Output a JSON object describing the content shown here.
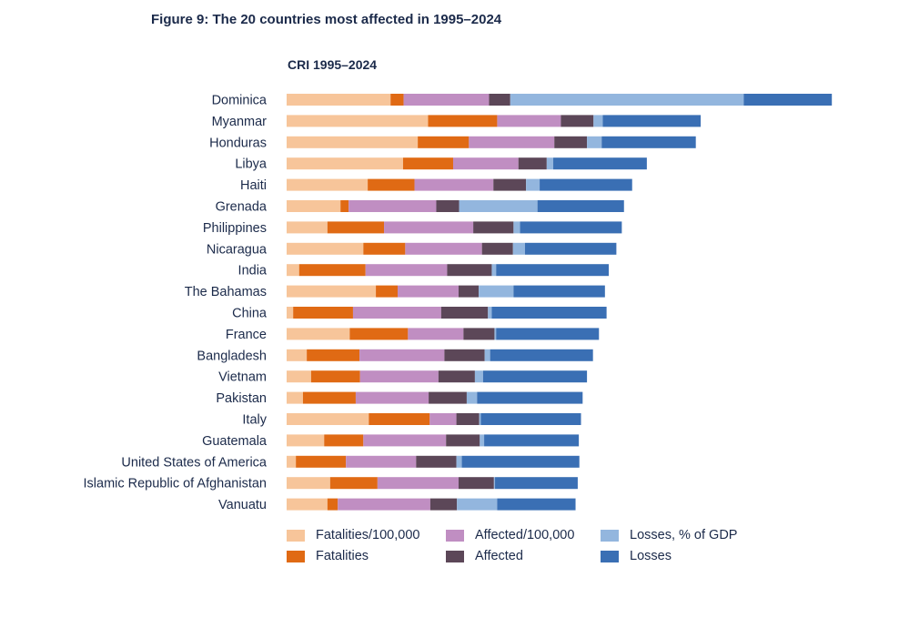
{
  "figure_title": "Figure 9: The 20 countries most affected in 1995–2024",
  "chart_data": {
    "type": "bar",
    "orientation": "horizontal",
    "stacked": true,
    "title": "CRI 1995–2024",
    "xlabel": "",
    "ylabel": "",
    "xlim": [
      0,
      100
    ],
    "grid": false,
    "legend_position": "bottom",
    "categories": [
      "Dominica",
      "Myanmar",
      "Honduras",
      "Libya",
      "Haiti",
      "Grenada",
      "Philippines",
      "Nicaragua",
      "India",
      "The Bahamas",
      "China",
      "France",
      "Bangladesh",
      "Vietnam",
      "Pakistan",
      "Italy",
      "Guatemala",
      "United States of America",
      "Islamic Republic of Afghanistan",
      "Vanuatu"
    ],
    "series": [
      {
        "name": "Fatalities/100,000",
        "color": "#f7c59a",
        "values": [
          19.1,
          26.0,
          24.1,
          21.4,
          14.9,
          9.9,
          7.5,
          14.1,
          2.3,
          16.4,
          1.2,
          11.6,
          3.7,
          4.5,
          3.0,
          15.1,
          6.9,
          1.7,
          8.0,
          7.5
        ]
      },
      {
        "name": "Fatalities",
        "color": "#e06a14",
        "values": [
          2.4,
          12.7,
          9.4,
          9.2,
          8.6,
          1.5,
          10.4,
          7.7,
          12.2,
          4.0,
          11.0,
          10.7,
          9.7,
          9.0,
          9.7,
          11.2,
          7.2,
          9.2,
          8.7,
          1.9
        ]
      },
      {
        "name": "Affected/100,000",
        "color": "#c08ec2",
        "values": [
          15.7,
          11.7,
          15.7,
          12.0,
          14.5,
          16.1,
          16.4,
          14.1,
          15.0,
          11.2,
          16.2,
          10.2,
          15.6,
          14.4,
          13.4,
          4.9,
          15.2,
          12.9,
          14.9,
          17.0
        ]
      },
      {
        "name": "Affected",
        "color": "#5c4758",
        "values": [
          3.9,
          6.0,
          6.0,
          5.2,
          6.0,
          4.2,
          7.4,
          5.7,
          8.2,
          3.7,
          8.6,
          5.7,
          7.4,
          6.7,
          7.0,
          4.2,
          6.2,
          7.4,
          6.5,
          4.9
        ]
      },
      {
        "name": "Losses, % of GDP",
        "color": "#93b6de",
        "values": [
          42.9,
          1.7,
          2.7,
          1.2,
          2.5,
          14.4,
          1.2,
          2.2,
          0.8,
          6.4,
          0.7,
          0.3,
          1.0,
          1.5,
          1.9,
          0.3,
          0.8,
          1.0,
          0.2,
          7.4
        ]
      },
      {
        "name": "Losses",
        "color": "#3a6fb4",
        "values": [
          16.2,
          18.0,
          17.3,
          17.2,
          17.0,
          15.9,
          18.7,
          16.8,
          20.7,
          16.8,
          21.1,
          18.9,
          18.9,
          19.1,
          19.4,
          18.4,
          17.4,
          21.6,
          15.2,
          14.4
        ]
      }
    ]
  }
}
